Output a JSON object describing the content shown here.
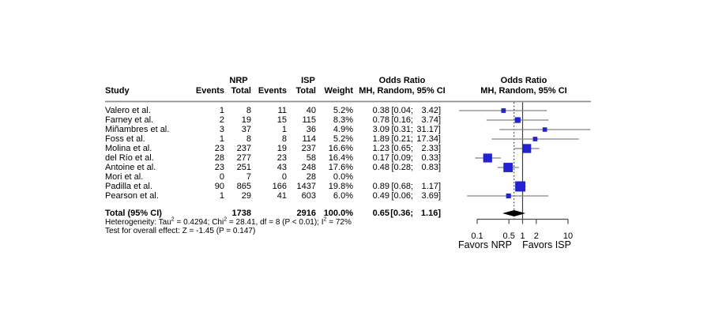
{
  "table_header": {
    "group_nrp": "NRP",
    "group_isp": "ISP",
    "odds_ratio_title": "Odds Ratio",
    "col_study": "Study",
    "col_events": "Events",
    "col_total": "Total",
    "col_weight": "Weight",
    "col_method": "MH, Random, 95% CI"
  },
  "chart_data": {
    "type": "scatter",
    "subtype": "forest-plot",
    "x_scale": "log10",
    "axis_ticks": [
      0.1,
      0.5,
      1,
      2,
      10
    ],
    "axis_tick_labels": [
      "0.1",
      "0.5",
      "1",
      "2",
      "10"
    ],
    "favors_left": "Favors NRP",
    "favors_right": "Favors ISP",
    "null_line_value": 1,
    "pooled_line_value": 0.65,
    "studies": [
      {
        "name": "Valero et al.",
        "nrp_events": "1",
        "nrp_total": "8",
        "isp_events": "11",
        "isp_total": "40",
        "weight_text": "5.2%",
        "weight": 5.2,
        "or": 0.38,
        "low": 0.04,
        "high": 3.42,
        "or_text": "0.38",
        "ci_low_text": "[0.04;",
        "ci_high_text": "3.42]"
      },
      {
        "name": "Farney et al.",
        "nrp_events": "2",
        "nrp_total": "19",
        "isp_events": "15",
        "isp_total": "115",
        "weight_text": "8.3%",
        "weight": 8.3,
        "or": 0.78,
        "low": 0.16,
        "high": 3.74,
        "or_text": "0.78",
        "ci_low_text": "[0.16;",
        "ci_high_text": "3.74]"
      },
      {
        "name": "Miñambres et al.",
        "nrp_events": "3",
        "nrp_total": "37",
        "isp_events": "1",
        "isp_total": "36",
        "weight_text": "4.9%",
        "weight": 4.9,
        "or": 3.09,
        "low": 0.31,
        "high": 31.17,
        "or_text": "3.09",
        "ci_low_text": "[0.31;",
        "ci_high_text": "31.17]"
      },
      {
        "name": "Foss et al.",
        "nrp_events": "1",
        "nrp_total": "8",
        "isp_events": "8",
        "isp_total": "114",
        "weight_text": "5.2%",
        "weight": 5.2,
        "or": 1.89,
        "low": 0.21,
        "high": 17.34,
        "or_text": "1.89",
        "ci_low_text": "[0.21;",
        "ci_high_text": "17.34]"
      },
      {
        "name": "Molina et al.",
        "nrp_events": "23",
        "nrp_total": "237",
        "isp_events": "19",
        "isp_total": "237",
        "weight_text": "16.6%",
        "weight": 16.6,
        "or": 1.23,
        "low": 0.65,
        "high": 2.33,
        "or_text": "1.23",
        "ci_low_text": "[0.65;",
        "ci_high_text": "2.33]"
      },
      {
        "name": "del Río et al.",
        "nrp_events": "28",
        "nrp_total": "277",
        "isp_events": "23",
        "isp_total": "58",
        "weight_text": "16.4%",
        "weight": 16.4,
        "or": 0.17,
        "low": 0.09,
        "high": 0.33,
        "or_text": "0.17",
        "ci_low_text": "[0.09;",
        "ci_high_text": "0.33]"
      },
      {
        "name": "Antoine et al.",
        "nrp_events": "23",
        "nrp_total": "251",
        "isp_events": "43",
        "isp_total": "248",
        "weight_text": "17.6%",
        "weight": 17.6,
        "or": 0.48,
        "low": 0.28,
        "high": 0.83,
        "or_text": "0.48",
        "ci_low_text": "[0.28;",
        "ci_high_text": "0.83]"
      },
      {
        "name": "Mori et al.",
        "nrp_events": "0",
        "nrp_total": "7",
        "isp_events": "0",
        "isp_total": "28",
        "weight_text": "0.0%",
        "weight": 0,
        "or": null,
        "low": null,
        "high": null,
        "or_text": "",
        "ci_low_text": "",
        "ci_high_text": ""
      },
      {
        "name": "Padilla et al.",
        "nrp_events": "90",
        "nrp_total": "865",
        "isp_events": "166",
        "isp_total": "1437",
        "weight_text": "19.8%",
        "weight": 19.8,
        "or": 0.89,
        "low": 0.68,
        "high": 1.17,
        "or_text": "0.89",
        "ci_low_text": "[0.68;",
        "ci_high_text": "1.17]"
      },
      {
        "name": "Pearson et al.",
        "nrp_events": "1",
        "nrp_total": "29",
        "isp_events": "41",
        "isp_total": "603",
        "weight_text": "6.0%",
        "weight": 6.0,
        "or": 0.49,
        "low": 0.06,
        "high": 3.69,
        "or_text": "0.49",
        "ci_low_text": "[0.06;",
        "ci_high_text": "3.69]"
      }
    ],
    "total": {
      "label": "Total (95% CI)",
      "nrp_total": "1738",
      "isp_total": "2916",
      "weight_text": "100.0%",
      "or": 0.65,
      "low": 0.36,
      "high": 1.16,
      "or_text": "0.65",
      "ci_low_text": "[0.36;",
      "ci_high_text": "1.16]"
    },
    "footnotes": {
      "heterogeneity_segments": [
        {
          "t": "Heterogeneity: Tau"
        },
        {
          "sup": "2"
        },
        {
          "t": " = 0.4294; Chi"
        },
        {
          "sup": "2"
        },
        {
          "t": " = 28.41, df = 8 (P < 0.01); I"
        },
        {
          "sup": "2"
        },
        {
          "t": " = 72%"
        }
      ],
      "overall_test": "Test for overall effect: Z = -1.45 (P = 0.147)"
    },
    "colors": {
      "square": "#2222cf",
      "ci_line": "#858585",
      "diamond": "#000000",
      "axis": "#4d4d4d",
      "header_rule": "#8f8f8f",
      "null_line": "#404040",
      "pooled_line": "#111111"
    }
  }
}
